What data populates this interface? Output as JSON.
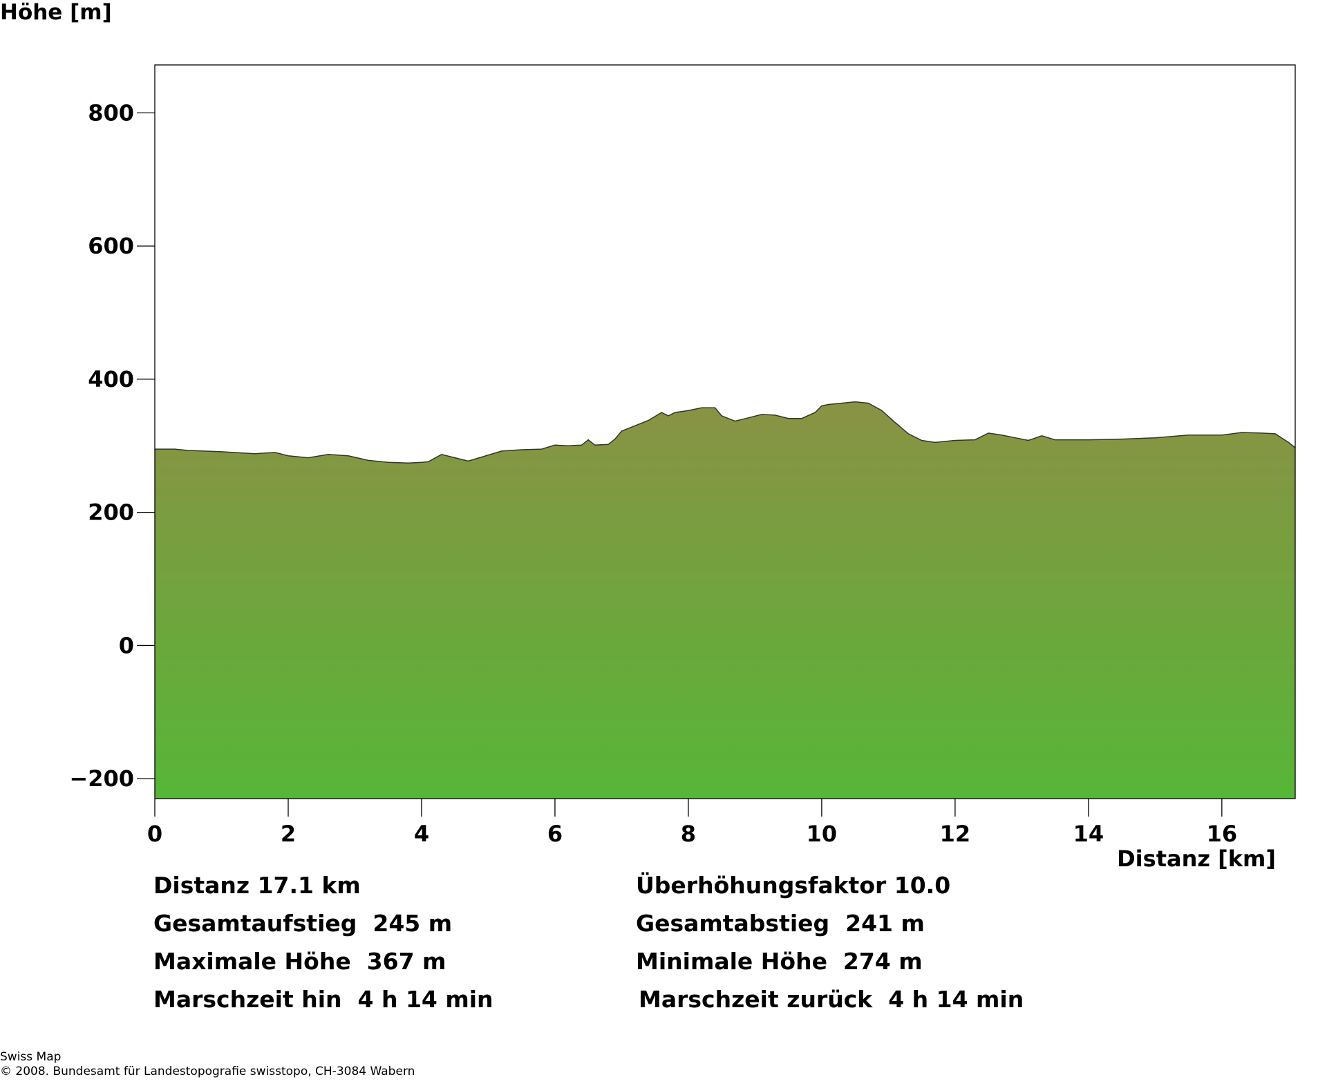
{
  "chart_data": {
    "type": "area",
    "ylabel": "Höhe [m]",
    "xlabel": "Distanz [km]",
    "xlim": [
      0,
      17.1
    ],
    "ylim": [
      -230,
      872
    ],
    "x_ticks": [
      0,
      2,
      4,
      6,
      8,
      10,
      12,
      14,
      16
    ],
    "y_ticks": [
      -200,
      0,
      200,
      400,
      600,
      800
    ],
    "x_tick_labels": [
      "0",
      "2",
      "4",
      "6",
      "8",
      "10",
      "12",
      "14",
      "16"
    ],
    "y_tick_labels": [
      "−200",
      "0",
      "200",
      "400",
      "600",
      "800"
    ],
    "grid": false,
    "fill_top_color": "#8a9244",
    "fill_bottom_color": "#56b637",
    "series": [
      {
        "x": [
          0,
          0.3,
          0.5,
          1.0,
          1.5,
          1.8,
          2.0,
          2.3,
          2.6,
          2.9,
          3.2,
          3.5,
          3.8,
          4.0,
          4.1,
          4.3,
          4.5,
          4.7,
          4.9,
          5.2,
          5.5,
          5.8,
          6.0,
          6.2,
          6.4,
          6.5,
          6.6,
          6.8,
          6.9,
          7.0,
          7.2,
          7.4,
          7.6,
          7.7,
          7.8,
          8.0,
          8.2,
          8.4,
          8.5,
          8.7,
          8.9,
          9.1,
          9.3,
          9.5,
          9.7,
          9.9,
          10.0,
          10.1,
          10.3,
          10.5,
          10.7,
          10.9,
          11.1,
          11.3,
          11.5,
          11.7,
          12.0,
          12.3,
          12.5,
          12.7,
          12.9,
          13.1,
          13.3,
          13.5,
          14.0,
          14.5,
          15.0,
          15.5,
          16.0,
          16.3,
          16.6,
          16.8,
          17.0,
          17.1
        ],
        "y": [
          295,
          295,
          293,
          291,
          288,
          290,
          285,
          282,
          287,
          285,
          278,
          275,
          274,
          275,
          276,
          287,
          282,
          277,
          283,
          292,
          294,
          295,
          301,
          300,
          301,
          309,
          301,
          302,
          310,
          322,
          330,
          338,
          350,
          345,
          350,
          353,
          357,
          357,
          345,
          337,
          342,
          347,
          346,
          341,
          341,
          350,
          360,
          362,
          364,
          366,
          364,
          353,
          335,
          318,
          308,
          305,
          308,
          309,
          319,
          316,
          312,
          308,
          315,
          309,
          309,
          310,
          312,
          316,
          316,
          320,
          319,
          318,
          305,
          297
        ]
      }
    ]
  },
  "stats": {
    "distanz": "Distanz 17.1 km",
    "ueberhoehung": "Überhöhungsfaktor 10.0",
    "gesamtaufstieg": "Gesamtaufstieg  245 m",
    "gesamtabstieg": "Gesamtabstieg  241 m",
    "max_hoehe": "Maximale Höhe  367 m",
    "min_hoehe": "Minimale Höhe  274 m",
    "marschzeit_hin": "Marschzeit hin  4 h 14 min",
    "marschzeit_zurueck": "Marschzeit zurück  4 h 14 min"
  },
  "footer": {
    "line1": "Swiss Map",
    "line2": "© 2008. Bundesamt für Landestopografie swisstopo, CH-3084 Wabern"
  }
}
